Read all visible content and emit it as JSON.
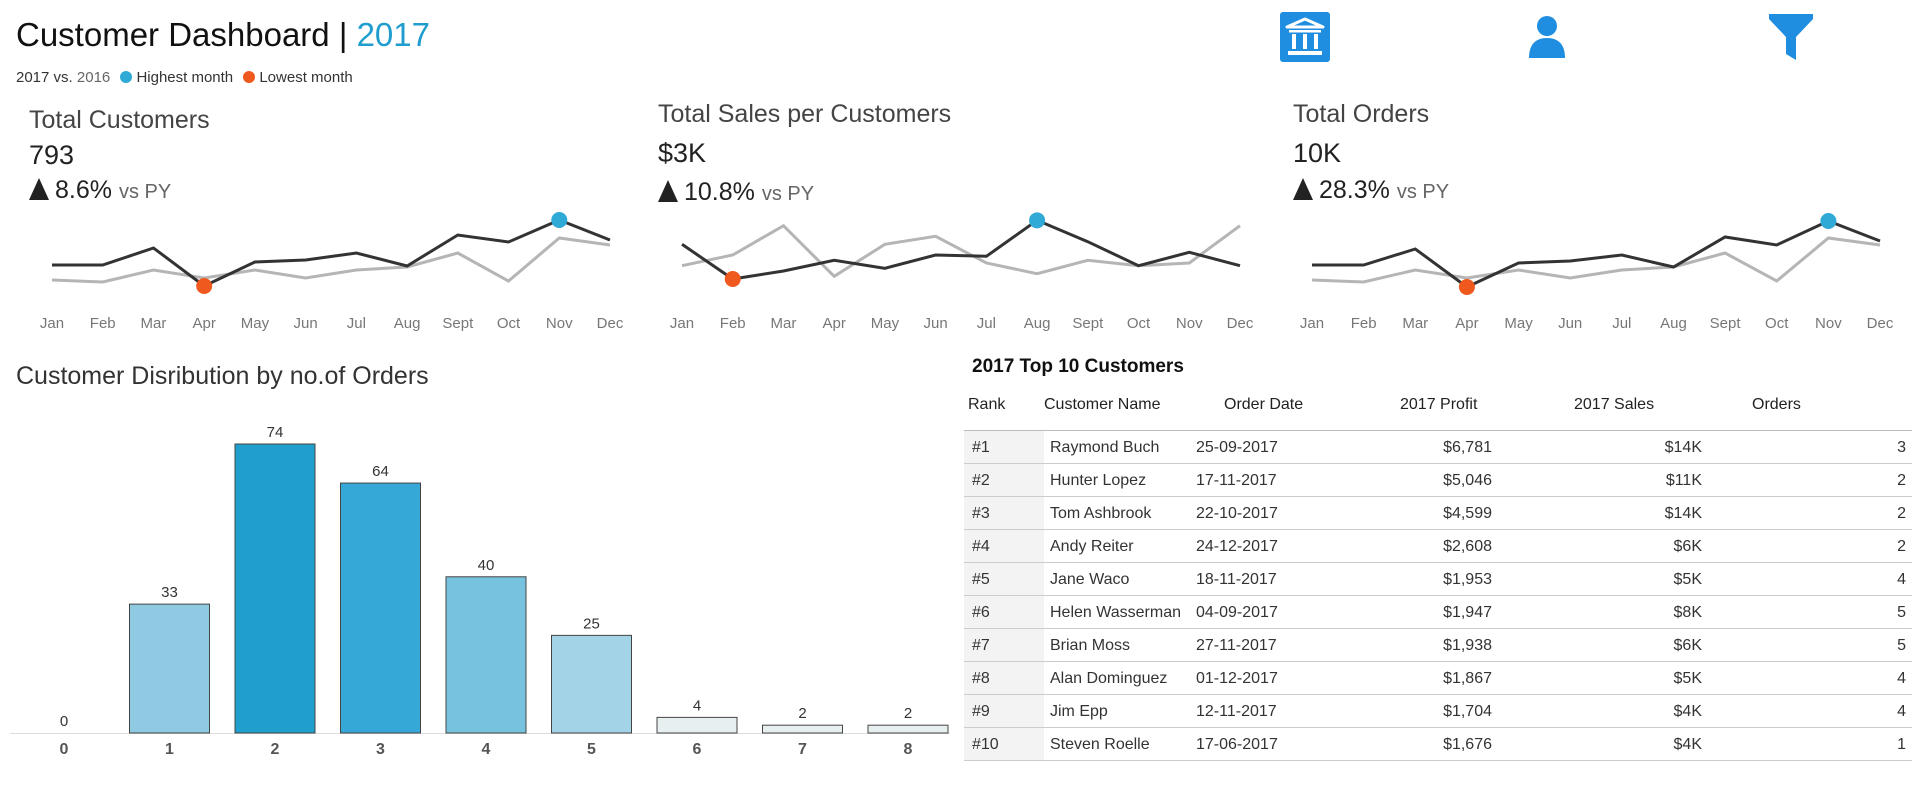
{
  "header": {
    "title": "Customer Dashboard",
    "separator": "|",
    "year": "2017",
    "legend_compare": "2017 vs.",
    "legend_prev_year": "2016",
    "legend_high": "Highest month",
    "legend_low": "Lowest month"
  },
  "icons": [
    "bank-icon",
    "user-icon",
    "filter-icon"
  ],
  "colors": {
    "accent": "#1f9dcf",
    "highest": "#2fa9d6",
    "lowest": "#f0591e",
    "current_line": "#333333",
    "previous_line": "#b5b5b5"
  },
  "kpis": [
    {
      "title": "Total Customers",
      "value": "793",
      "delta": "8.6%",
      "vs": "vs PY"
    },
    {
      "title": "Total Sales per Customers",
      "value": "$3K",
      "delta": "10.8%",
      "vs": "vs PY"
    },
    {
      "title": "Total Orders",
      "value": "10K",
      "delta": "28.3%",
      "vs": "vs PY"
    }
  ],
  "dist_title": "Customer Disribution by no.of Orders",
  "table": {
    "title": "2017 Top 10 Customers",
    "headers": {
      "rank": "Rank",
      "name": "Customer Name",
      "date": "Order Date",
      "profit": "2017 Profit",
      "sales": "2017 Sales",
      "orders": "Orders"
    },
    "rows": [
      {
        "rank": "#1",
        "name": "Raymond Buch",
        "date": "25-09-2017",
        "profit": "$6,781",
        "sales": "$14K",
        "orders": "3"
      },
      {
        "rank": "#2",
        "name": "Hunter Lopez",
        "date": "17-11-2017",
        "profit": "$5,046",
        "sales": "$11K",
        "orders": "2"
      },
      {
        "rank": "#3",
        "name": "Tom Ashbrook",
        "date": "22-10-2017",
        "profit": "$4,599",
        "sales": "$14K",
        "orders": "2"
      },
      {
        "rank": "#4",
        "name": "Andy Reiter",
        "date": "24-12-2017",
        "profit": "$2,608",
        "sales": "$6K",
        "orders": "2"
      },
      {
        "rank": "#5",
        "name": "Jane Waco",
        "date": "18-11-2017",
        "profit": "$1,953",
        "sales": "$5K",
        "orders": "4"
      },
      {
        "rank": "#6",
        "name": "Helen Wasserman",
        "date": "04-09-2017",
        "profit": "$1,947",
        "sales": "$8K",
        "orders": "5"
      },
      {
        "rank": "#7",
        "name": "Brian Moss",
        "date": "27-11-2017",
        "profit": "$1,938",
        "sales": "$6K",
        "orders": "5"
      },
      {
        "rank": "#8",
        "name": "Alan Dominguez",
        "date": "01-12-2017",
        "profit": "$1,867",
        "sales": "$5K",
        "orders": "4"
      },
      {
        "rank": "#9",
        "name": "Jim Epp",
        "date": "12-11-2017",
        "profit": "$1,704",
        "sales": "$4K",
        "orders": "4"
      },
      {
        "rank": "#10",
        "name": "Steven Roelle",
        "date": "17-06-2017",
        "profit": "$1,676",
        "sales": "$4K",
        "orders": "1"
      }
    ]
  },
  "chart_data": [
    {
      "type": "line",
      "name": "Total Customers",
      "categories": [
        "Jan",
        "Feb",
        "Mar",
        "Apr",
        "May",
        "Jun",
        "Jul",
        "Aug",
        "Sept",
        "Oct",
        "Nov",
        "Dec"
      ],
      "series": [
        {
          "values": [
            60,
            60,
            77,
            39,
            63,
            65,
            72,
            59,
            90,
            83,
            105,
            85
          ]
        },
        {
          "values": [
            45,
            43,
            55,
            47,
            55,
            47,
            55,
            58,
            72,
            44,
            87,
            80
          ]
        }
      ],
      "highlight_high": 10,
      "highlight_low": 3,
      "ylim": [
        30,
        110
      ]
    },
    {
      "type": "line",
      "name": "Total Sales per Customers",
      "categories": [
        "Jan",
        "Feb",
        "Mar",
        "Apr",
        "May",
        "Jun",
        "Jul",
        "Aug",
        "Sept",
        "Oct",
        "Nov",
        "Dec"
      ],
      "series": [
        {
          "values": [
            3.4,
            2.1,
            2.4,
            2.8,
            2.5,
            3.0,
            2.95,
            4.3,
            3.5,
            2.6,
            3.1,
            2.6
          ]
        },
        {
          "values": [
            2.6,
            3.0,
            4.1,
            2.2,
            3.4,
            3.7,
            2.7,
            2.3,
            2.8,
            2.6,
            2.7,
            4.1
          ]
        }
      ],
      "highlight_high": 7,
      "highlight_low": 1,
      "ylim": [
        1.5,
        4.5
      ]
    },
    {
      "type": "line",
      "name": "Total Orders",
      "categories": [
        "Jan",
        "Feb",
        "Mar",
        "Apr",
        "May",
        "Jun",
        "Jul",
        "Aug",
        "Sept",
        "Oct",
        "Nov",
        "Dec"
      ],
      "series": [
        {
          "values": [
            0.6,
            0.6,
            0.76,
            0.38,
            0.62,
            0.64,
            0.7,
            0.58,
            0.88,
            0.8,
            1.04,
            0.84
          ]
        },
        {
          "values": [
            0.45,
            0.43,
            0.55,
            0.47,
            0.55,
            0.47,
            0.55,
            0.58,
            0.72,
            0.44,
            0.87,
            0.8
          ]
        }
      ],
      "highlight_high": 10,
      "highlight_low": 3,
      "ylim": [
        0.3,
        1.1
      ]
    },
    {
      "type": "bar",
      "title": "Customer Disribution by no.of Orders",
      "categories": [
        "0",
        "1",
        "2",
        "3",
        "4",
        "5",
        "6",
        "7",
        "8"
      ],
      "values": [
        0,
        33,
        74,
        64,
        40,
        25,
        4,
        2,
        2
      ],
      "ylim": [
        0,
        74
      ]
    }
  ]
}
